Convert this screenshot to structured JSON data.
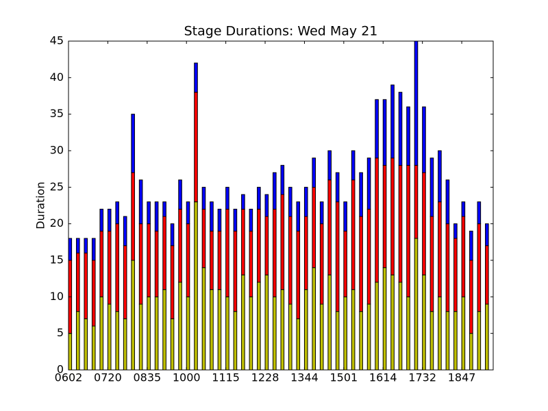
{
  "chart_data": {
    "type": "stacked_bar",
    "title": "Stage Durations: Wed May 21",
    "ylabel": "Duration",
    "categories": [
      "0602",
      null,
      null,
      null,
      null,
      "0720",
      null,
      null,
      null,
      null,
      "0835",
      null,
      null,
      null,
      null,
      "1000",
      null,
      null,
      null,
      null,
      "1115",
      null,
      null,
      null,
      null,
      "1228",
      null,
      null,
      null,
      null,
      "1344",
      null,
      null,
      null,
      null,
      "1501",
      null,
      null,
      null,
      null,
      "1614",
      null,
      null,
      null,
      null,
      "1732",
      null,
      null,
      null,
      null,
      "1847",
      null,
      null,
      null
    ],
    "series": [
      {
        "color": "#bfbf00",
        "values": [
          5,
          8,
          7,
          6,
          10,
          9,
          8,
          7,
          15,
          9,
          10,
          10,
          11,
          7,
          12,
          10,
          23,
          14,
          11,
          11,
          10,
          8,
          13,
          10,
          12,
          13,
          10,
          11,
          9,
          7,
          11,
          14,
          9,
          13,
          8,
          10,
          11,
          8,
          9,
          12,
          14,
          13,
          12,
          10,
          18,
          13,
          8,
          10,
          8,
          8,
          10,
          5,
          8,
          9
        ]
      },
      {
        "color": "#ff0000",
        "values": [
          10,
          8,
          9,
          9,
          9,
          10,
          12,
          10,
          12,
          11,
          10,
          9,
          10,
          10,
          10,
          10,
          15,
          8,
          8,
          8,
          12,
          11,
          9,
          9,
          10,
          8,
          12,
          13,
          12,
          12,
          10,
          11,
          11,
          13,
          15,
          9,
          15,
          13,
          13,
          17,
          14,
          16,
          16,
          18,
          10,
          14,
          13,
          13,
          12,
          10,
          11,
          10,
          12,
          8
        ]
      },
      {
        "color": "#0000ff",
        "values": [
          3,
          2,
          2,
          3,
          3,
          3,
          3,
          4,
          8,
          6,
          3,
          4,
          2,
          3,
          4,
          3,
          4,
          3,
          4,
          3,
          3,
          3,
          2,
          3,
          3,
          3,
          5,
          4,
          4,
          4,
          4,
          4,
          3,
          4,
          4,
          4,
          4,
          6,
          7,
          8,
          9,
          10,
          10,
          8,
          17,
          9,
          8,
          7,
          6,
          2,
          2,
          4,
          3,
          3
        ]
      }
    ],
    "ylim": [
      0,
      45
    ],
    "yticks": [
      0,
      5,
      10,
      15,
      20,
      25,
      30,
      35,
      40,
      45
    ]
  }
}
